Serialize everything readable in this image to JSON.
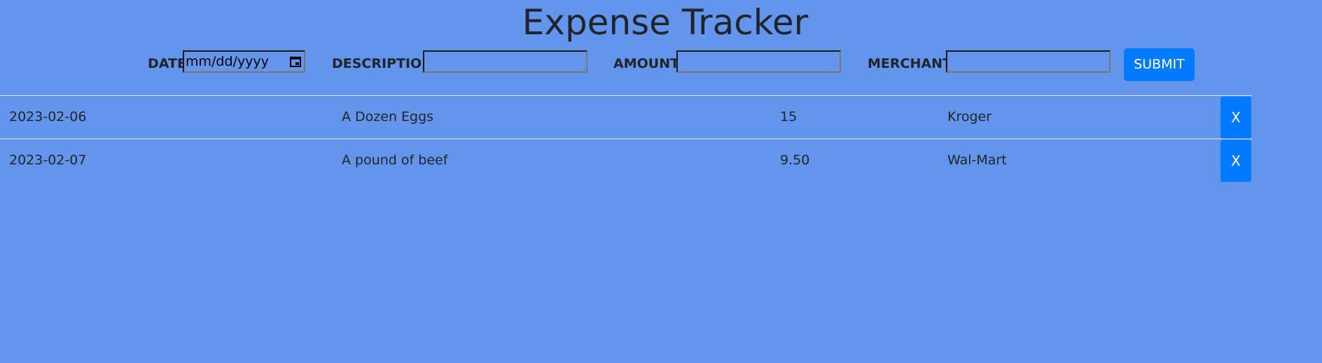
{
  "app": {
    "title": "Expense Tracker"
  },
  "form": {
    "date": {
      "label": "DATE",
      "placeholder": "mm/dd/yyyy"
    },
    "description": {
      "label": "DESCRIPTION",
      "value": ""
    },
    "amount": {
      "label": "AMOUNT",
      "value": ""
    },
    "merchant": {
      "label": "MERCHANT",
      "value": ""
    },
    "submit_label": "SUBMIT"
  },
  "expenses": [
    {
      "date": "2023-02-06",
      "description": "A Dozen Eggs",
      "amount": "15",
      "merchant": "Kroger",
      "delete_label": "X"
    },
    {
      "date": "2023-02-07",
      "description": "A pound of beef",
      "amount": "9.50",
      "merchant": "Wal-Mart",
      "delete_label": "X"
    }
  ],
  "colors": {
    "background": "#6495ed",
    "button": "#007bff",
    "text": "#212529"
  },
  "icons": {
    "date_picker": "calendar-icon"
  }
}
